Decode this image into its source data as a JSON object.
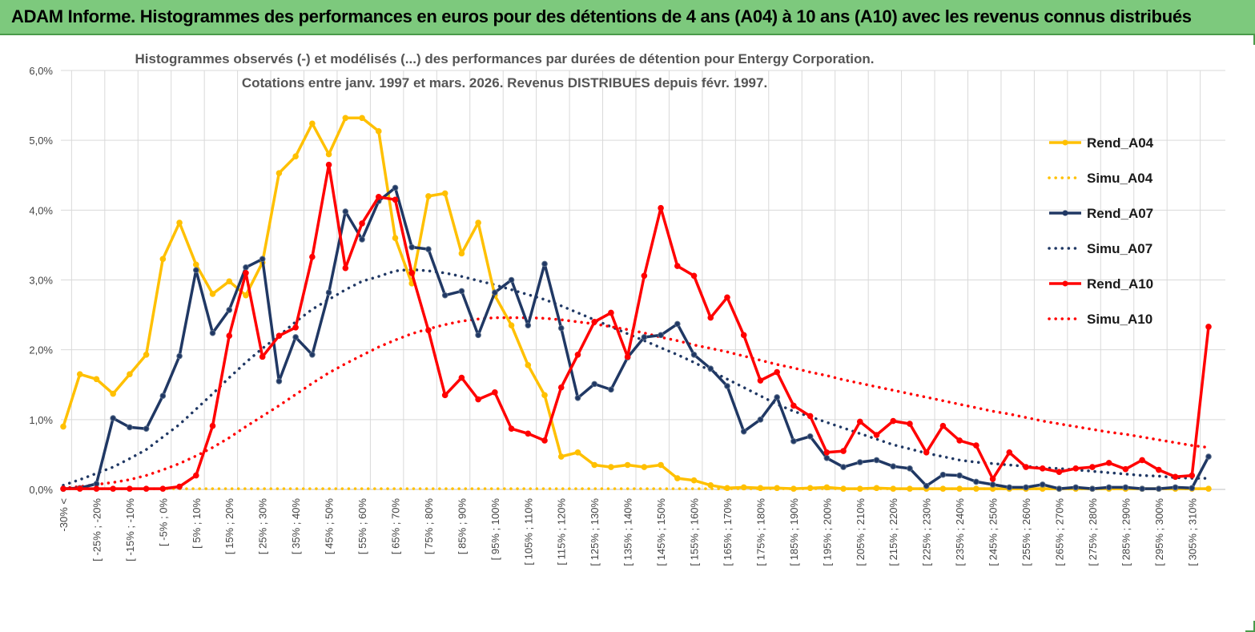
{
  "header": {
    "banner_title": "ADAM Informe. Histogrammes des performances en euros pour des détentions de 4 ans (A04) à 10 ans (A10) avec les revenus connus distribués"
  },
  "colors": {
    "banner_bg": "#7dc97d",
    "a04": "#ffc000",
    "a07": "#203864",
    "a10": "#ff0000",
    "grid": "#d9d9d9"
  },
  "chart_data": {
    "type": "line",
    "title_line1": "Histogrammes observés (-) et modélisés (...) des performances par durées de détention pour Entergy Corporation.",
    "title_line2": "Cotations entre janv. 1997 et mars. 2026. Revenus DISTRIBUES depuis févr. 1997.",
    "xlabel": "",
    "ylabel": "",
    "ylim": [
      0,
      6
    ],
    "yticks": [
      "0,0%",
      "1,0%",
      "2,0%",
      "3,0%",
      "4,0%",
      "5,0%",
      "6,0%"
    ],
    "x_tick_labels": [
      "-30% <",
      "[ -25% ; -20%",
      "[ -15% ; -10%",
      "[ -5% ; 0%",
      "[ 5% ; 10%",
      "[ 15% ; 20%",
      "[ 25% ; 30%",
      "[ 35% ; 40%",
      "[ 45% ; 50%",
      "[ 55% ; 60%",
      "[ 65% ; 70%",
      "[ 75% ; 80%",
      "[ 85% ; 90%",
      "[ 95% ; 100%",
      "[ 105% ; 110%",
      "[ 115% ; 120%",
      "[ 125% ; 130%",
      "[ 135% ; 140%",
      "[ 145% ; 150%",
      "[ 155% ; 160%",
      "[ 165% ; 170%",
      "[ 175% ; 180%",
      "[ 185% ; 190%",
      "[ 195% ; 200%",
      "[ 205% ; 210%",
      "[ 215% ; 220%",
      "[ 225% ; 230%",
      "[ 235% ; 240%",
      "[ 245% ; 250%",
      "[ 255% ; 260%",
      "[ 265% ; 270%",
      "[ 275% ; 280%",
      "[ 285% ; 290%",
      "[ 295% ; 300%",
      "[ 305% ; 310%"
    ],
    "n_bins": 70,
    "legend_position": "right",
    "series": [
      {
        "name": "Rend_A04",
        "style": "solid",
        "color": "#ffc000",
        "values": [
          0.9,
          1.65,
          1.58,
          1.37,
          1.65,
          1.93,
          3.3,
          3.82,
          3.22,
          2.8,
          2.98,
          2.78,
          3.25,
          4.53,
          4.77,
          5.24,
          4.8,
          5.32,
          5.32,
          5.13,
          3.6,
          2.95,
          4.2,
          4.24,
          3.38,
          3.82,
          2.78,
          2.35,
          1.78,
          1.35,
          0.47,
          0.53,
          0.35,
          0.32,
          0.35,
          0.32,
          0.35,
          0.16,
          0.13,
          0.06,
          0.02,
          0.03,
          0.02,
          0.02,
          0.01,
          0.02,
          0.03,
          0.01,
          0.01,
          0.02,
          0.01,
          0.01,
          0.01,
          0.01,
          0.01,
          0.01,
          0.01,
          0.01,
          0.01,
          0.01,
          0.01,
          0.01,
          0.01,
          0.01,
          0.01,
          0.01,
          0.01,
          0.01,
          0.01,
          0.01
        ]
      },
      {
        "name": "Simu_A04",
        "style": "dotted",
        "color": "#ffc000",
        "values": [
          0.01,
          0.01,
          0.01,
          0.01,
          0.01,
          0.01,
          0.01,
          0.01,
          0.01,
          0.01,
          0.01,
          0.01,
          0.01,
          0.01,
          0.01,
          0.01,
          0.01,
          0.01,
          0.01,
          0.01,
          0.01,
          0.01,
          0.01,
          0.01,
          0.01,
          0.01,
          0.01,
          0.01,
          0.01,
          0.01,
          0.01,
          0.01,
          0.01,
          0.01,
          0.01,
          0.01,
          0.01,
          0.01,
          0.01,
          0.01,
          0.01,
          0.01,
          0.01,
          0.01,
          0.01,
          0.01,
          0.01,
          0.01,
          0.01,
          0.01,
          0.01,
          0.01,
          0.01,
          0.01,
          0.01,
          0.01,
          0.01,
          0.01,
          0.01,
          0.01,
          0.01,
          0.01,
          0.01,
          0.01,
          0.01,
          0.01,
          0.01,
          0.01,
          0.01,
          0.01
        ]
      },
      {
        "name": "Rend_A07",
        "style": "solid",
        "color": "#203864",
        "values": [
          0.01,
          0.02,
          0.08,
          1.02,
          0.89,
          0.87,
          1.34,
          1.91,
          3.14,
          2.24,
          2.57,
          3.18,
          3.3,
          1.55,
          2.18,
          1.93,
          2.82,
          3.98,
          3.58,
          4.13,
          4.32,
          3.47,
          3.44,
          2.78,
          2.84,
          2.21,
          2.82,
          3.0,
          2.35,
          3.23,
          2.31,
          1.31,
          1.51,
          1.43,
          1.89,
          2.18,
          2.21,
          2.37,
          1.93,
          1.73,
          1.48,
          0.83,
          1.0,
          1.32,
          0.69,
          0.76,
          0.45,
          0.32,
          0.39,
          0.42,
          0.33,
          0.3,
          0.05,
          0.21,
          0.2,
          0.11,
          0.07,
          0.03,
          0.03,
          0.07,
          0.01,
          0.03,
          0.01,
          0.03,
          0.03,
          0.01,
          0.01,
          0.03,
          0.02,
          0.47
        ]
      },
      {
        "name": "Simu_A07",
        "style": "dotted",
        "color": "#203864",
        "values": [
          0.06,
          0.14,
          0.23,
          0.32,
          0.44,
          0.57,
          0.75,
          0.93,
          1.15,
          1.37,
          1.6,
          1.82,
          2.02,
          2.2,
          2.4,
          2.58,
          2.72,
          2.86,
          2.98,
          3.05,
          3.13,
          3.15,
          3.13,
          3.1,
          3.05,
          2.99,
          2.93,
          2.86,
          2.79,
          2.72,
          2.63,
          2.53,
          2.43,
          2.33,
          2.23,
          2.13,
          2.03,
          1.93,
          1.82,
          1.7,
          1.58,
          1.46,
          1.34,
          1.22,
          1.12,
          1.04,
          0.96,
          0.88,
          0.8,
          0.72,
          0.64,
          0.58,
          0.52,
          0.47,
          0.42,
          0.39,
          0.37,
          0.35,
          0.33,
          0.31,
          0.3,
          0.28,
          0.26,
          0.24,
          0.22,
          0.2,
          0.19,
          0.17,
          0.16,
          0.16
        ]
      },
      {
        "name": "Rend_A10",
        "style": "solid",
        "color": "#ff0000",
        "values": [
          0.01,
          0.01,
          0.01,
          0.01,
          0.01,
          0.01,
          0.01,
          0.04,
          0.2,
          0.91,
          2.2,
          3.1,
          1.9,
          2.2,
          2.32,
          3.33,
          4.65,
          3.17,
          3.81,
          4.19,
          4.15,
          3.1,
          2.28,
          1.35,
          1.6,
          1.29,
          1.39,
          0.87,
          0.8,
          0.7,
          1.46,
          1.93,
          2.4,
          2.53,
          1.9,
          3.06,
          4.03,
          3.2,
          3.06,
          2.46,
          2.75,
          2.21,
          1.56,
          1.68,
          1.2,
          1.05,
          0.53,
          0.55,
          0.97,
          0.78,
          0.98,
          0.94,
          0.53,
          0.91,
          0.7,
          0.63,
          0.15,
          0.53,
          0.32,
          0.3,
          0.25,
          0.3,
          0.32,
          0.38,
          0.29,
          0.42,
          0.28,
          0.18,
          0.2,
          2.33
        ]
      },
      {
        "name": "Simu_A10",
        "style": "dotted",
        "color": "#ff0000",
        "values": [
          0.02,
          0.04,
          0.07,
          0.1,
          0.14,
          0.2,
          0.28,
          0.37,
          0.48,
          0.6,
          0.74,
          0.9,
          1.05,
          1.2,
          1.36,
          1.52,
          1.67,
          1.8,
          1.92,
          2.04,
          2.14,
          2.23,
          2.3,
          2.36,
          2.41,
          2.44,
          2.46,
          2.46,
          2.46,
          2.45,
          2.43,
          2.4,
          2.37,
          2.33,
          2.29,
          2.24,
          2.18,
          2.13,
          2.07,
          2.02,
          1.97,
          1.91,
          1.85,
          1.79,
          1.74,
          1.68,
          1.63,
          1.57,
          1.52,
          1.47,
          1.42,
          1.37,
          1.32,
          1.27,
          1.22,
          1.17,
          1.12,
          1.08,
          1.03,
          0.98,
          0.94,
          0.9,
          0.86,
          0.82,
          0.79,
          0.75,
          0.71,
          0.67,
          0.63,
          0.6
        ]
      }
    ]
  }
}
